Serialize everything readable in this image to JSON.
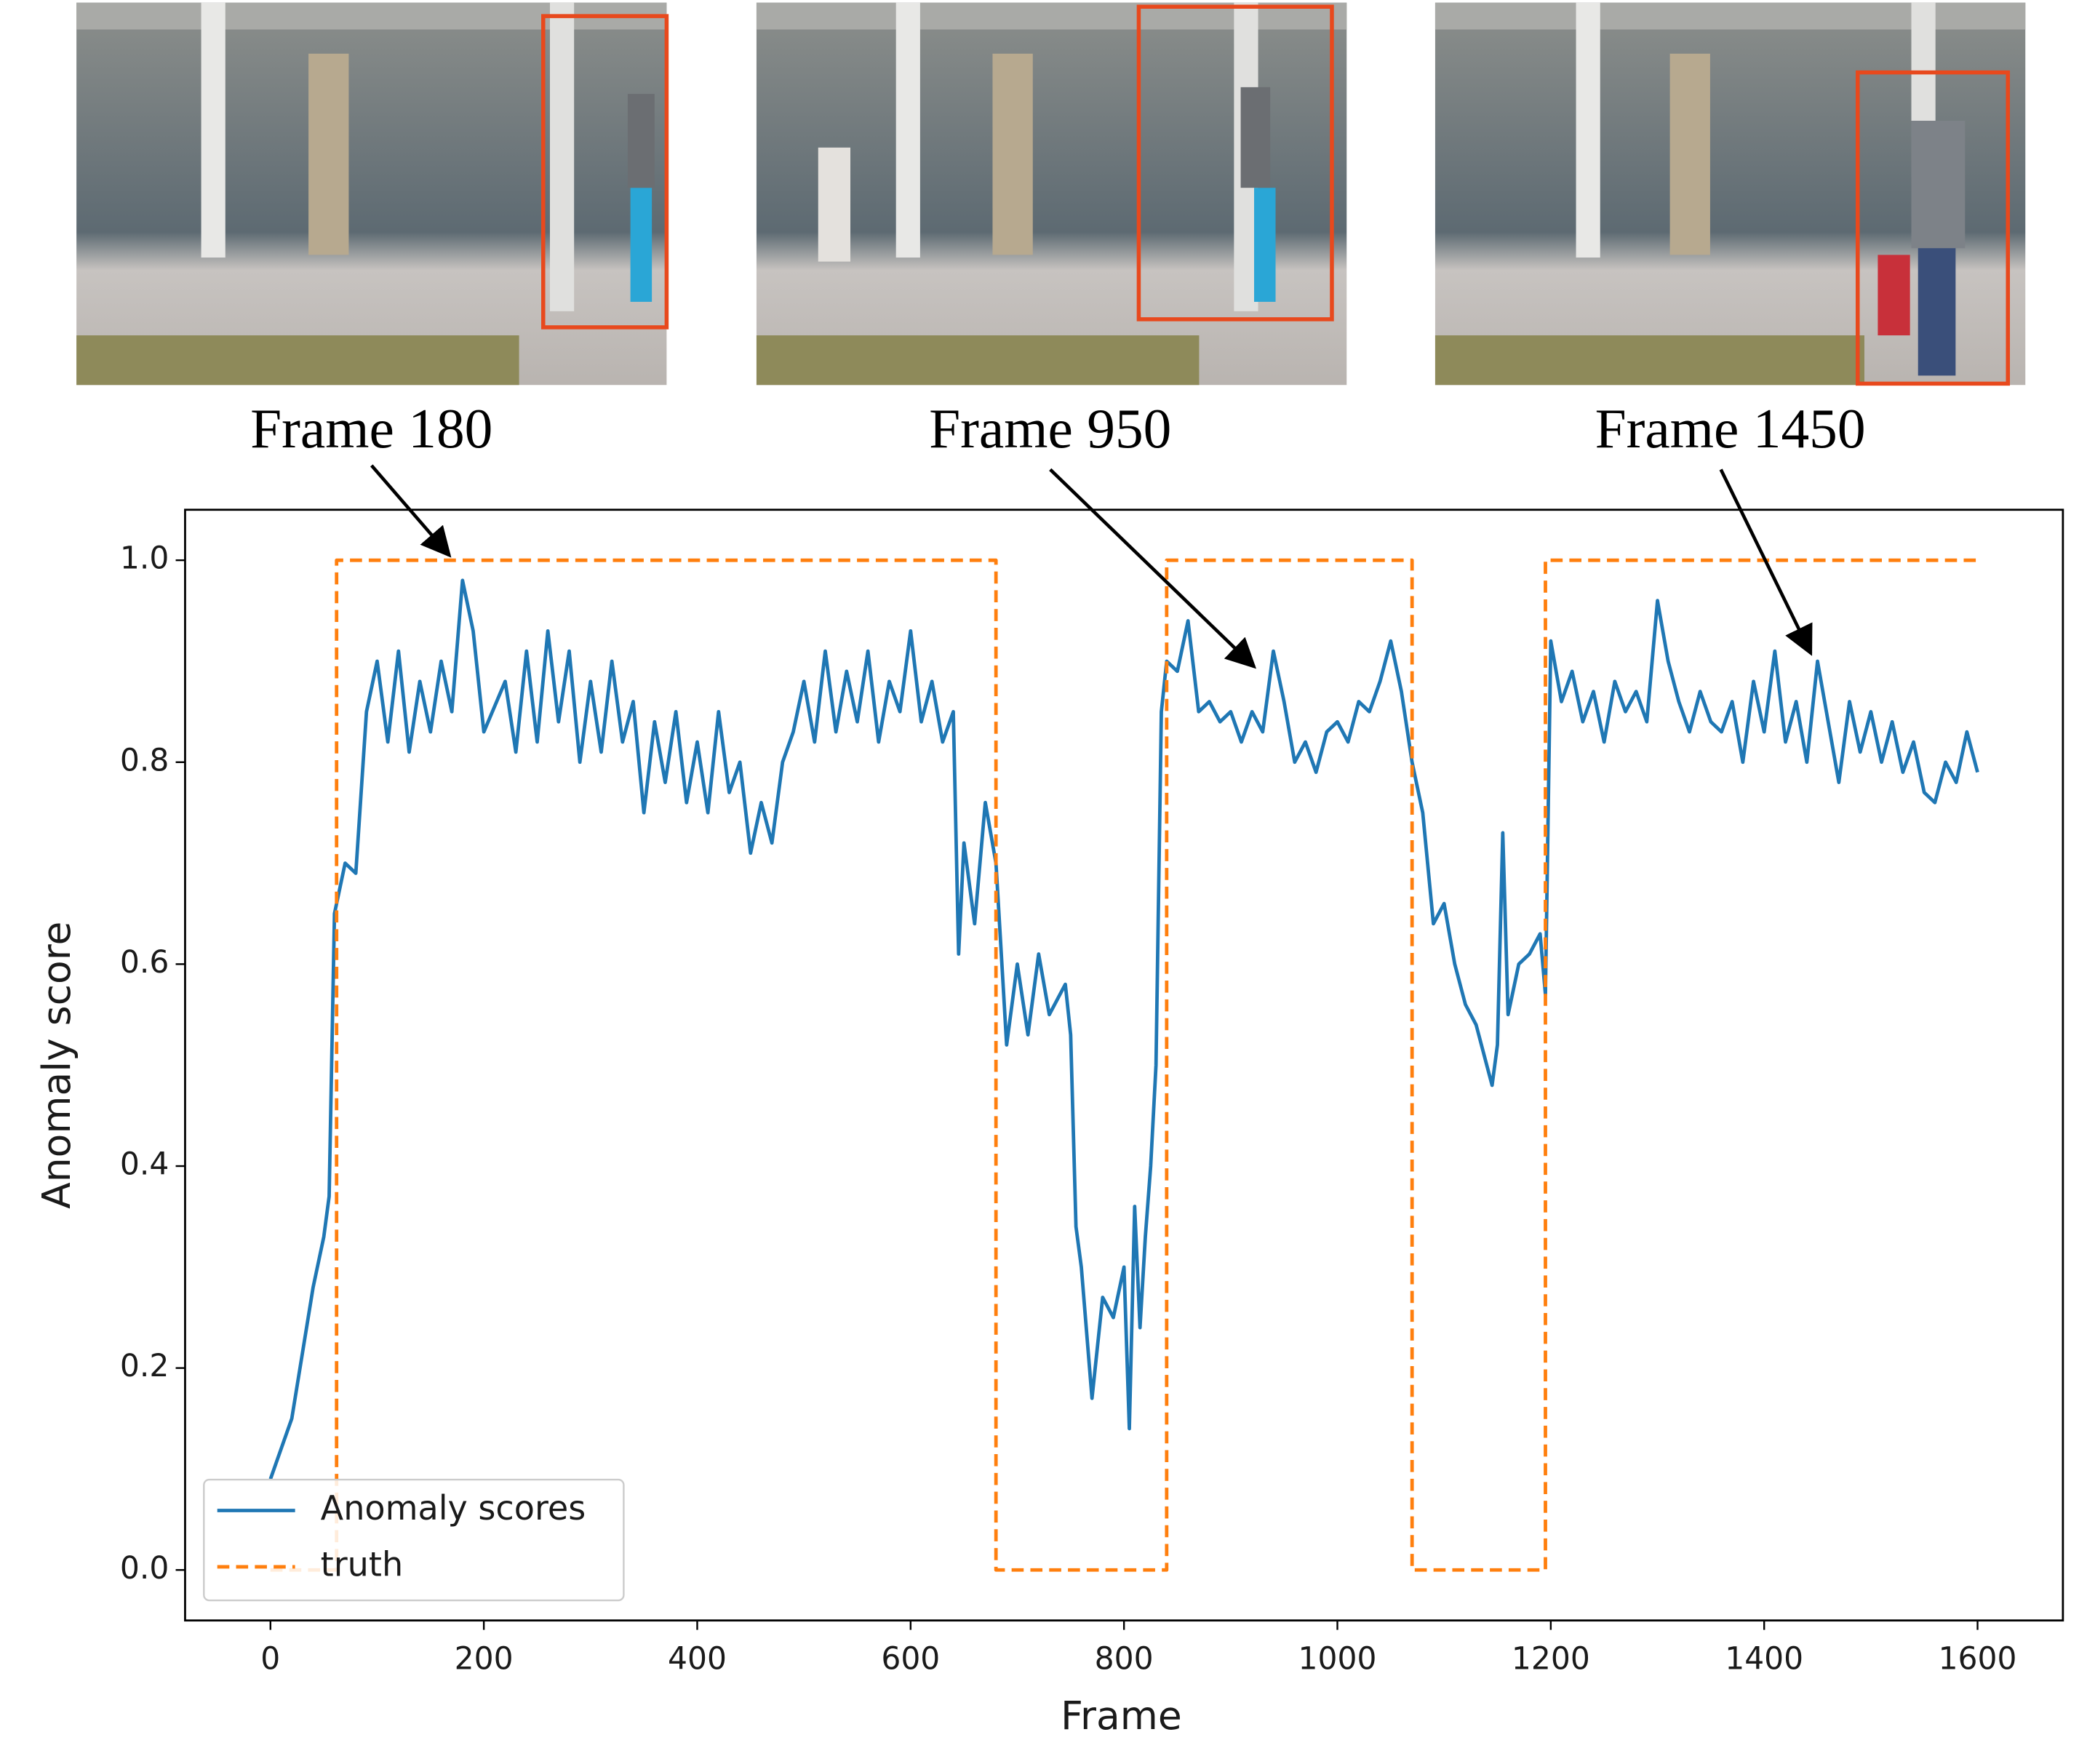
{
  "chart_data": {
    "type": "line",
    "xlabel": "Frame",
    "ylabel": "Anomaly score",
    "annotations": [
      "Frame 180",
      "Frame 950",
      "Frame 1450"
    ],
    "xlim": [
      -80,
      1680
    ],
    "ylim": [
      -0.05,
      1.05
    ],
    "xticks": [
      0,
      200,
      400,
      600,
      800,
      1000,
      1200,
      1400,
      1600
    ],
    "yticks": [
      {
        "value": 0,
        "label": "0.0"
      },
      0.2,
      0.4,
      0.6,
      0.8,
      {
        "value": 1,
        "label": "1.0"
      }
    ],
    "legend": "lower left",
    "series": [
      {
        "name": "Anomaly scores",
        "color": "#1f77b4",
        "linestyle": "solid",
        "x": [
          0,
          20,
          40,
          50,
          55,
          60,
          70,
          80,
          90,
          100,
          110,
          120,
          130,
          140,
          150,
          160,
          170,
          180,
          190,
          200,
          220,
          230,
          240,
          250,
          260,
          270,
          280,
          290,
          300,
          310,
          320,
          330,
          340,
          350,
          360,
          370,
          380,
          390,
          400,
          410,
          420,
          430,
          440,
          450,
          460,
          470,
          480,
          490,
          500,
          510,
          520,
          530,
          540,
          550,
          560,
          570,
          580,
          590,
          600,
          610,
          620,
          630,
          640,
          645,
          650,
          660,
          670,
          680,
          690,
          700,
          710,
          720,
          730,
          740,
          745,
          750,
          755,
          760,
          770,
          780,
          790,
          800,
          805,
          810,
          815,
          820,
          825,
          830,
          835,
          840,
          850,
          860,
          870,
          880,
          890,
          900,
          910,
          920,
          930,
          940,
          950,
          960,
          970,
          980,
          990,
          1000,
          1010,
          1020,
          1030,
          1040,
          1050,
          1060,
          1070,
          1080,
          1090,
          1100,
          1110,
          1120,
          1130,
          1140,
          1145,
          1150,
          1155,
          1160,
          1170,
          1180,
          1190,
          1195,
          1200,
          1210,
          1220,
          1230,
          1240,
          1250,
          1260,
          1270,
          1280,
          1290,
          1300,
          1310,
          1320,
          1330,
          1340,
          1350,
          1360,
          1370,
          1380,
          1390,
          1400,
          1410,
          1420,
          1430,
          1440,
          1450,
          1460,
          1470,
          1480,
          1490,
          1500,
          1510,
          1520,
          1530,
          1540,
          1550,
          1560,
          1570,
          1580,
          1590,
          1600
        ],
        "values": [
          0.09,
          0.15,
          0.28,
          0.33,
          0.37,
          0.65,
          0.7,
          0.69,
          0.85,
          0.9,
          0.82,
          0.91,
          0.81,
          0.88,
          0.83,
          0.9,
          0.85,
          0.98,
          0.93,
          0.83,
          0.88,
          0.81,
          0.91,
          0.82,
          0.93,
          0.84,
          0.91,
          0.8,
          0.88,
          0.81,
          0.9,
          0.82,
          0.86,
          0.75,
          0.84,
          0.78,
          0.85,
          0.76,
          0.82,
          0.75,
          0.85,
          0.77,
          0.8,
          0.71,
          0.76,
          0.72,
          0.8,
          0.83,
          0.88,
          0.82,
          0.91,
          0.83,
          0.89,
          0.84,
          0.91,
          0.82,
          0.88,
          0.85,
          0.93,
          0.84,
          0.88,
          0.82,
          0.85,
          0.61,
          0.72,
          0.64,
          0.76,
          0.7,
          0.52,
          0.6,
          0.53,
          0.61,
          0.55,
          0.57,
          0.58,
          0.53,
          0.34,
          0.3,
          0.17,
          0.27,
          0.25,
          0.3,
          0.14,
          0.36,
          0.24,
          0.33,
          0.4,
          0.5,
          0.85,
          0.9,
          0.89,
          0.94,
          0.85,
          0.86,
          0.84,
          0.85,
          0.82,
          0.85,
          0.83,
          0.91,
          0.86,
          0.8,
          0.82,
          0.79,
          0.83,
          0.84,
          0.82,
          0.86,
          0.85,
          0.88,
          0.92,
          0.87,
          0.8,
          0.75,
          0.64,
          0.66,
          0.6,
          0.56,
          0.54,
          0.5,
          0.48,
          0.52,
          0.73,
          0.55,
          0.6,
          0.61,
          0.63,
          0.57,
          0.92,
          0.86,
          0.89,
          0.84,
          0.87,
          0.82,
          0.88,
          0.85,
          0.87,
          0.84,
          0.96,
          0.9,
          0.86,
          0.83,
          0.87,
          0.84,
          0.83,
          0.86,
          0.8,
          0.88,
          0.83,
          0.91,
          0.82,
          0.86,
          0.8,
          0.9,
          0.84,
          0.78,
          0.86,
          0.81,
          0.85,
          0.8,
          0.84,
          0.79,
          0.82,
          0.77,
          0.76,
          0.8,
          0.78,
          0.83,
          0.79
        ]
      },
      {
        "name": "truth",
        "color": "#ff7f0e",
        "linestyle": "dashed",
        "x": [
          0,
          62,
          62,
          680,
          680,
          840,
          840,
          1070,
          1070,
          1195,
          1195,
          1600
        ],
        "values": [
          0,
          0,
          1,
          1,
          0,
          0,
          1,
          1,
          0,
          0,
          1,
          1
        ]
      }
    ]
  }
}
